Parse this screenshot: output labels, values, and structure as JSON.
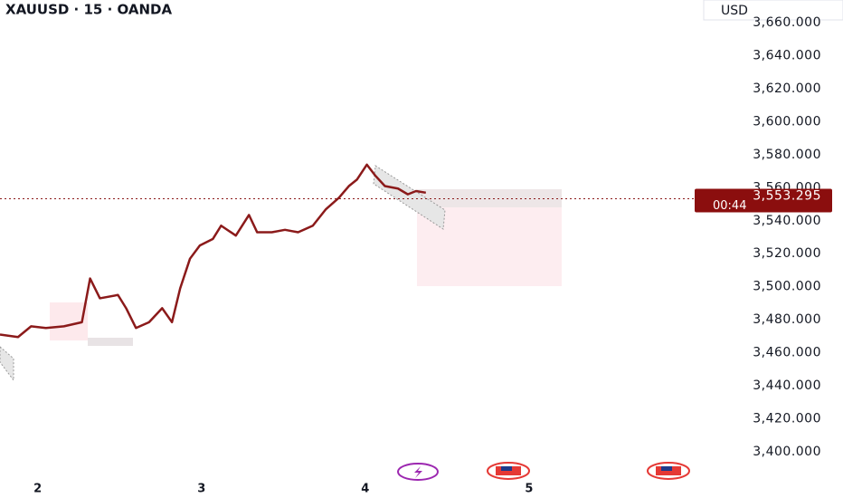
{
  "chart_data": {
    "type": "line",
    "title": "XAUUSD · 15 · OANDA",
    "currency": "USD",
    "x": [
      1.77,
      1.88,
      1.96,
      2.05,
      2.16,
      2.27,
      2.32,
      2.38,
      2.49,
      2.54,
      2.6,
      2.68,
      2.76,
      2.82,
      2.87,
      2.93,
      2.99,
      3.07,
      3.12,
      3.21,
      3.29,
      3.34,
      3.43,
      3.51,
      3.59,
      3.68,
      3.76,
      3.84,
      3.9,
      3.95,
      4.01,
      4.06,
      4.12,
      4.2,
      4.26,
      4.31,
      4.37
    ],
    "series": [
      {
        "color": "#8b1a1a",
        "values": [
          3471,
          3469.5,
          3476,
          3475,
          3476,
          3478.5,
          3505,
          3493,
          3495,
          3487,
          3475,
          3478.5,
          3487,
          3478.5,
          3499,
          3517,
          3525,
          3529,
          3537,
          3531,
          3543.5,
          3533,
          3533,
          3534.5,
          3533,
          3537,
          3547,
          3554,
          3561,
          3565,
          3574,
          3567.5,
          3561,
          3559.5,
          3556,
          3558,
          3557
        ]
      }
    ],
    "last_price": {
      "value": 3553.295,
      "label": "3,553.295"
    },
    "countdown": "00:44",
    "xlim": [
      1.77,
      6.05
    ],
    "xticks": [
      2,
      3,
      4,
      5
    ],
    "ylim": [
      3395,
      3665
    ],
    "yticks": [
      {
        "value": 3400,
        "label": "3,400.000"
      },
      {
        "value": 3420,
        "label": "3,420.000"
      },
      {
        "value": 3440,
        "label": "3,440.000"
      },
      {
        "value": 3460,
        "label": "3,460.000"
      },
      {
        "value": 3480,
        "label": "3,480.000"
      },
      {
        "value": 3500,
        "label": "3,500.000"
      },
      {
        "value": 3520,
        "label": "3,520.000"
      },
      {
        "value": 3540,
        "label": "3,540.000"
      },
      {
        "value": 3560,
        "label": "3,560.000"
      },
      {
        "value": 3580,
        "label": "3,580.000"
      },
      {
        "value": 3600,
        "label": "3,600.000"
      },
      {
        "value": 3620,
        "label": "3,620.000"
      },
      {
        "value": 3640,
        "label": "3,640.000"
      },
      {
        "value": 3660,
        "label": "3,660.000"
      }
    ]
  }
}
